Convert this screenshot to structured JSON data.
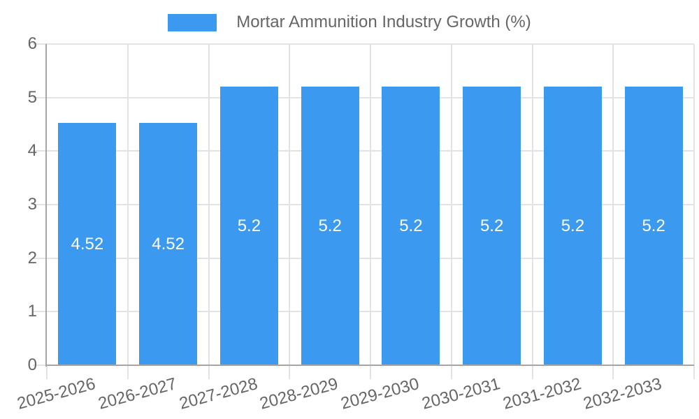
{
  "chart_data": {
    "type": "bar",
    "title": "Mortar Ammunition Industry Growth (%)",
    "legend": {
      "position": "top",
      "label": "Mortar Ammunition Industry Growth (%)"
    },
    "categories": [
      "2025-2026",
      "2026-2027",
      "2027-2028",
      "2028-2029",
      "2029-2030",
      "2030-2031",
      "2031-2032",
      "2032-2033"
    ],
    "values": [
      4.52,
      4.52,
      5.2,
      5.2,
      5.2,
      5.2,
      5.2,
      5.2
    ],
    "value_labels": [
      "4.52",
      "4.52",
      "5.2",
      "5.2",
      "5.2",
      "5.2",
      "5.2",
      "5.2"
    ],
    "xlabel": "",
    "ylabel": "",
    "ylim": [
      0,
      6
    ],
    "y_ticks": [
      "0",
      "1",
      "2",
      "3",
      "4",
      "5",
      "6"
    ],
    "grid": "on",
    "colors": {
      "bar": "#3b99ef",
      "value_label": "#ffffff",
      "grid": "#e3e3e3",
      "axis": "#a6a6a6",
      "text": "#666666"
    }
  }
}
